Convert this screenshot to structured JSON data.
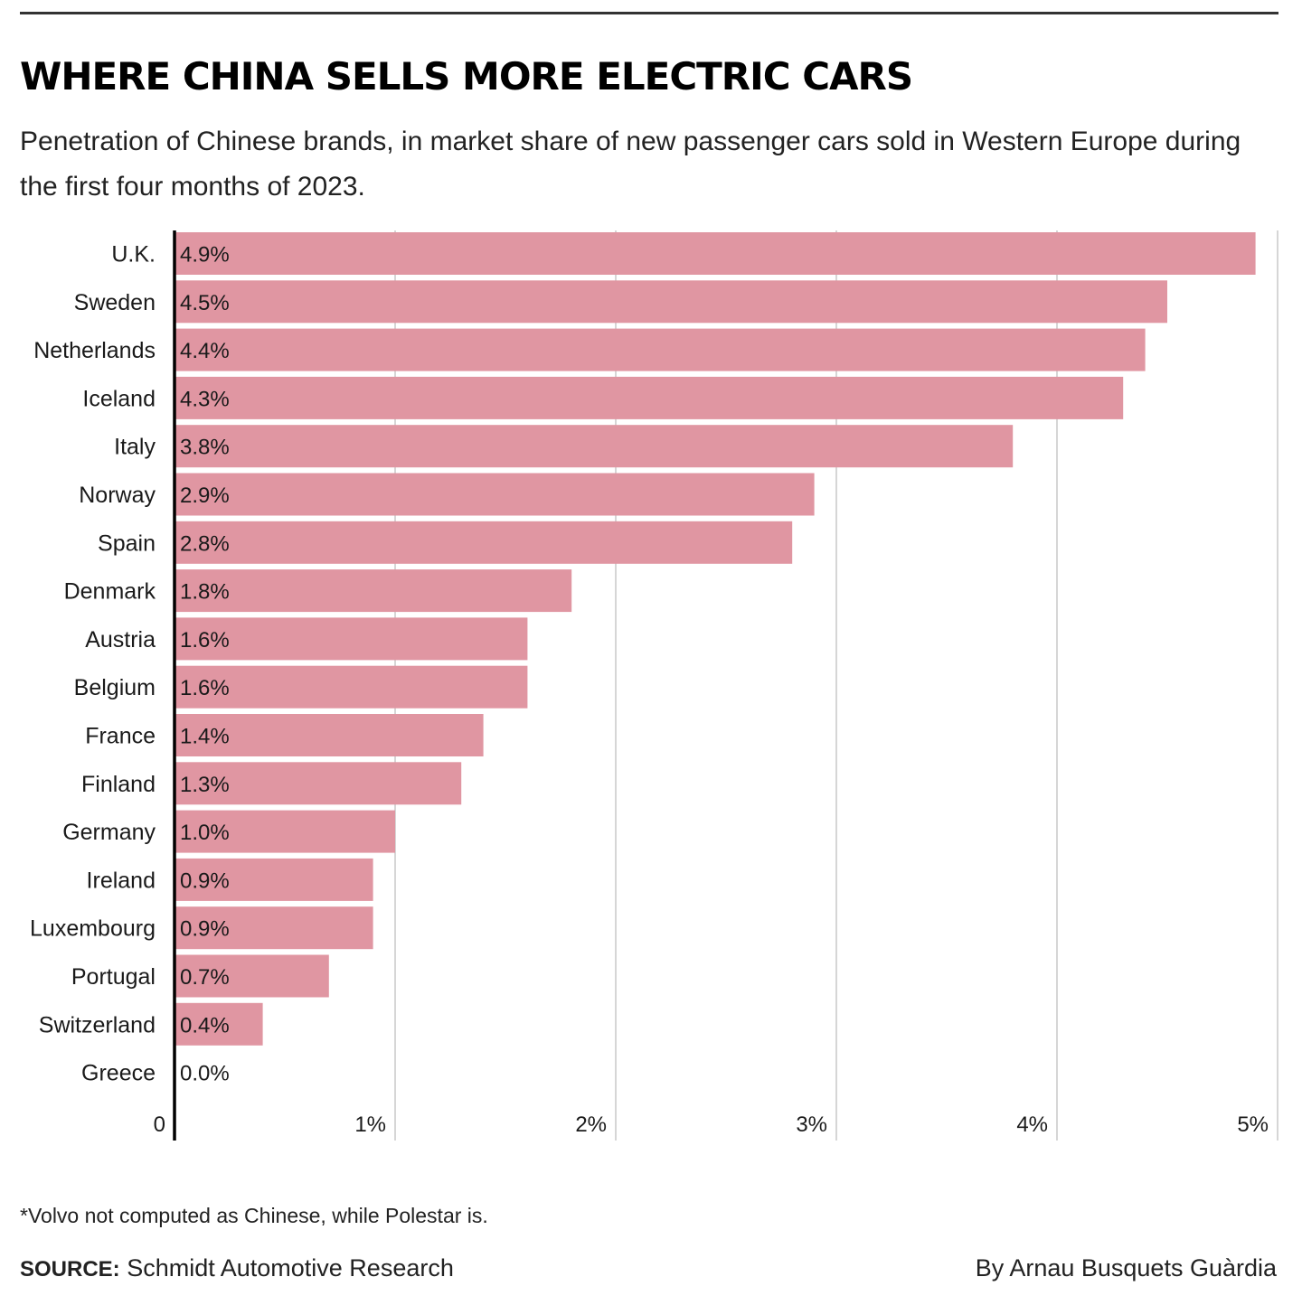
{
  "header": {
    "title": "WHERE CHINA SELLS MORE ELECTRIC CARS",
    "subtitle": "Penetration of Chinese brands, in market share of new passenger cars sold in Western Europe during the first four months of 2023."
  },
  "footer": {
    "note": "*Volvo not computed as Chinese, while Polestar is.",
    "source_label": "SOURCE:",
    "source_text": "Schmidt Automotive Research",
    "byline": "By Arnau Busquets Guàrdia"
  },
  "colors": {
    "bar": "#e096a2",
    "grid": "#c8c8c8",
    "axis": "#000000",
    "text": "#1a1a1a"
  },
  "chart_data": {
    "type": "bar",
    "orientation": "horizontal",
    "categories": [
      "U.K.",
      "Sweden",
      "Netherlands",
      "Iceland",
      "Italy",
      "Norway",
      "Spain",
      "Denmark",
      "Austria",
      "Belgium",
      "France",
      "Finland",
      "Germany",
      "Ireland",
      "Luxembourg",
      "Portugal",
      "Switzerland",
      "Greece"
    ],
    "values": [
      4.9,
      4.5,
      4.4,
      4.3,
      3.8,
      2.9,
      2.8,
      1.8,
      1.6,
      1.6,
      1.4,
      1.3,
      1.0,
      0.9,
      0.9,
      0.7,
      0.4,
      0.0
    ],
    "data_labels": [
      "4.9%",
      "4.5%",
      "4.4%",
      "4.3%",
      "3.8%",
      "2.9%",
      "2.8%",
      "1.8%",
      "1.6%",
      "1.6%",
      "1.4%",
      "1.3%",
      "1.0%",
      "0.9%",
      "0.9%",
      "0.7%",
      "0.4%",
      "0.0%"
    ],
    "xlim": [
      0,
      5
    ],
    "xticks": [
      0,
      1,
      2,
      3,
      4,
      5
    ],
    "xtick_labels": [
      "0",
      "1%",
      "2%",
      "3%",
      "4%",
      "5%"
    ],
    "grid": true,
    "title": "WHERE CHINA SELLS MORE ELECTRIC CARS",
    "xlabel": "",
    "ylabel": ""
  }
}
